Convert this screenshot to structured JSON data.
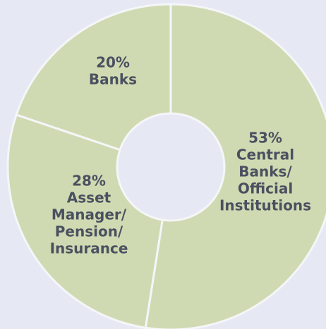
{
  "chart_data": {
    "type": "donut",
    "categories": [
      [
        "Central",
        "Banks/",
        "Official",
        "Institutions"
      ],
      [
        "Asset",
        "Manager/",
        "Pension/",
        "Insurance"
      ],
      [
        "Banks"
      ]
    ],
    "values": [
      53,
      28,
      20
    ],
    "value_labels": [
      "53%",
      "28%",
      "20%"
    ],
    "color": "#cfdab2"
  }
}
